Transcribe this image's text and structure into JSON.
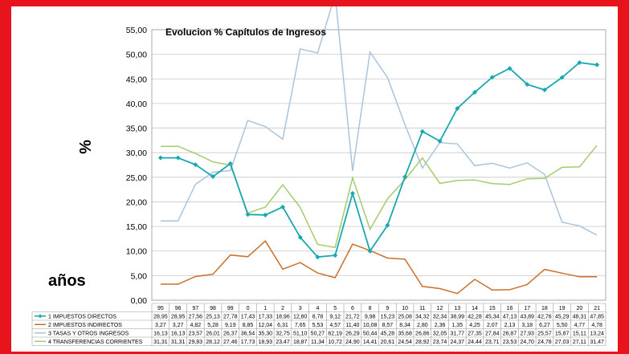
{
  "chart_data": {
    "type": "line",
    "title": "Evolucion % Capítulos de Ingresos",
    "ylabel": "%",
    "xlabel": "años",
    "ylim": [
      0,
      55
    ],
    "yticks": [
      "0,00",
      "5,00",
      "10,00",
      "15,00",
      "20,00",
      "25,00",
      "30,00",
      "35,00",
      "40,00",
      "45,00",
      "50,00",
      "55,00"
    ],
    "categories": [
      "95",
      "96",
      "97",
      "98",
      "99",
      "0",
      "1",
      "2",
      "3",
      "4",
      "5",
      "6",
      "8",
      "9",
      "10",
      "11",
      "12",
      "13",
      "14",
      "15",
      "16",
      "17",
      "18",
      "19",
      "20",
      "21"
    ],
    "grid": true,
    "legend": "data-table-below",
    "series": [
      {
        "name": "1 IMPUESTOS DIRECTOS",
        "color": "#1aa8b0",
        "marker": "diamond",
        "labels": [
          "28,95",
          "28,95",
          "27,56",
          "25,13",
          "27,78",
          "17,43",
          "17,33",
          "18,96",
          "12,80",
          "8,78",
          "9,12",
          "21,72",
          "9,98",
          "15,23",
          "25,08",
          "34,32",
          "32,34",
          "38,99",
          "42,28",
          "45,34",
          "47,13",
          "43,89",
          "42,76",
          "45,29",
          "48,31",
          "47,85"
        ],
        "values": [
          28.95,
          28.95,
          27.56,
          25.13,
          27.78,
          17.43,
          17.33,
          18.96,
          12.8,
          8.78,
          9.12,
          21.72,
          9.98,
          15.23,
          25.08,
          34.32,
          32.34,
          38.99,
          42.28,
          45.34,
          47.13,
          43.89,
          42.76,
          45.29,
          48.31,
          47.85
        ]
      },
      {
        "name": "2 IMPUESTOS INDIRECTOS",
        "color": "#c9702a",
        "marker": "none",
        "labels": [
          "3,27",
          "3,27",
          "4,82",
          "5,28",
          "9,19",
          "8,85",
          "12,04",
          "6,31",
          "7,65",
          "5,53",
          "4,57",
          "11,40",
          "10,08",
          "8,57",
          "8,34",
          "2,80",
          "2,36",
          "1,35",
          "4,25",
          "2,07",
          "2,13",
          "3,18",
          "6,27",
          "5,50",
          "4,77",
          "4,78"
        ],
        "values": [
          3.27,
          3.27,
          4.82,
          5.28,
          9.19,
          8.85,
          12.04,
          6.31,
          7.65,
          5.53,
          4.57,
          11.4,
          10.08,
          8.57,
          8.34,
          2.8,
          2.36,
          1.35,
          4.25,
          2.07,
          2.13,
          3.18,
          6.27,
          5.5,
          4.77,
          4.78
        ]
      },
      {
        "name": "3 TASAS Y OTROS INGRESOS",
        "color": "#a9c4dc",
        "marker": "none",
        "labels": [
          "16,13",
          "16,13",
          "23,57",
          "26,01",
          "26,37",
          "36,54",
          "35,30",
          "32,75",
          "51,10",
          "50,27",
          "62,19",
          "26,29",
          "50,44",
          "45,28",
          "35,68",
          "26,86",
          "32,05",
          "31,77",
          "27,35",
          "27,84",
          "26,87",
          "27,93",
          "25,57",
          "15,87",
          "15,11",
          "13,24"
        ],
        "values": [
          16.13,
          16.13,
          23.57,
          26.01,
          26.37,
          36.54,
          35.3,
          32.75,
          51.1,
          50.27,
          62.19,
          26.29,
          50.44,
          45.28,
          35.68,
          26.86,
          32.05,
          31.77,
          27.35,
          27.84,
          26.87,
          27.93,
          25.57,
          15.87,
          15.11,
          13.24
        ]
      },
      {
        "name": "4 TRANSFERENCIAS CORRIENTES",
        "color": "#a4cc6c",
        "marker": "none",
        "labels": [
          "31,31",
          "31,31",
          "29,83",
          "28,12",
          "27,46",
          "17,73",
          "18,93",
          "23,47",
          "18,87",
          "11,34",
          "10,72",
          "24,90",
          "14,41",
          "20,61",
          "24,54",
          "28,92",
          "23,74",
          "24,37",
          "24,44",
          "23,71",
          "23,53",
          "24,70",
          "24,78",
          "27,03",
          "27,11",
          "31,47"
        ],
        "values": [
          31.31,
          31.31,
          29.83,
          28.12,
          27.46,
          17.73,
          18.93,
          23.47,
          18.87,
          11.34,
          10.72,
          24.9,
          14.41,
          20.61,
          24.54,
          28.92,
          23.74,
          24.37,
          24.44,
          23.71,
          23.53,
          24.7,
          24.78,
          27.03,
          27.11,
          31.47
        ]
      }
    ]
  }
}
